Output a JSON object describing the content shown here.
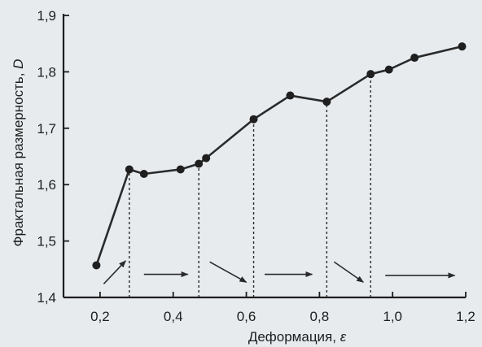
{
  "chart_data": {
    "type": "line",
    "xlabel_text": "Деформация, ",
    "xlabel_symbol": "ε",
    "ylabel_text": "Фрактальная размерность, ",
    "ylabel_symbol": "D",
    "xlim": [
      0.1,
      1.2
    ],
    "ylim": [
      1.4,
      1.9
    ],
    "x_ticks": [
      0.2,
      0.4,
      0.6,
      0.8,
      1.0,
      1.2
    ],
    "x_tick_labels": [
      "0,2",
      "0,4",
      "0,6",
      "0,8",
      "1,0",
      "1,2"
    ],
    "y_ticks": [
      1.4,
      1.5,
      1.6,
      1.7,
      1.8,
      1.9
    ],
    "y_tick_labels": [
      "1,4",
      "1,5",
      "1,6",
      "1,7",
      "1,8",
      "1,9"
    ],
    "grid": false,
    "series": [
      {
        "x": [
          0.19,
          0.28,
          0.32,
          0.42,
          0.47,
          0.49,
          0.62,
          0.72,
          0.82,
          0.94,
          0.99,
          1.06,
          1.19
        ],
        "y": [
          1.457,
          1.627,
          1.619,
          1.627,
          1.637,
          1.647,
          1.716,
          1.758,
          1.747,
          1.796,
          1.804,
          1.825,
          1.845
        ]
      }
    ],
    "stage_boundaries": [
      0.28,
      0.47,
      0.62,
      0.82,
      0.94
    ],
    "stage_arrows": [
      {
        "x1": 0.21,
        "y1": 1.424,
        "x2": 0.27,
        "y2": 1.465
      },
      {
        "x1": 0.32,
        "y1": 1.441,
        "x2": 0.44,
        "y2": 1.441
      },
      {
        "x1": 0.5,
        "y1": 1.463,
        "x2": 0.6,
        "y2": 1.427
      },
      {
        "x1": 0.65,
        "y1": 1.441,
        "x2": 0.78,
        "y2": 1.441
      },
      {
        "x1": 0.84,
        "y1": 1.463,
        "x2": 0.92,
        "y2": 1.427
      },
      {
        "x1": 0.98,
        "y1": 1.439,
        "x2": 1.17,
        "y2": 1.439
      }
    ],
    "colors": {
      "background": "#e7ebee",
      "line": "#2a2a2a",
      "marker": "#1f1f1f",
      "axis": "#1e1e1e",
      "dotted_guides": "#2a2a2a",
      "arrows": "#2a2a2a"
    }
  }
}
